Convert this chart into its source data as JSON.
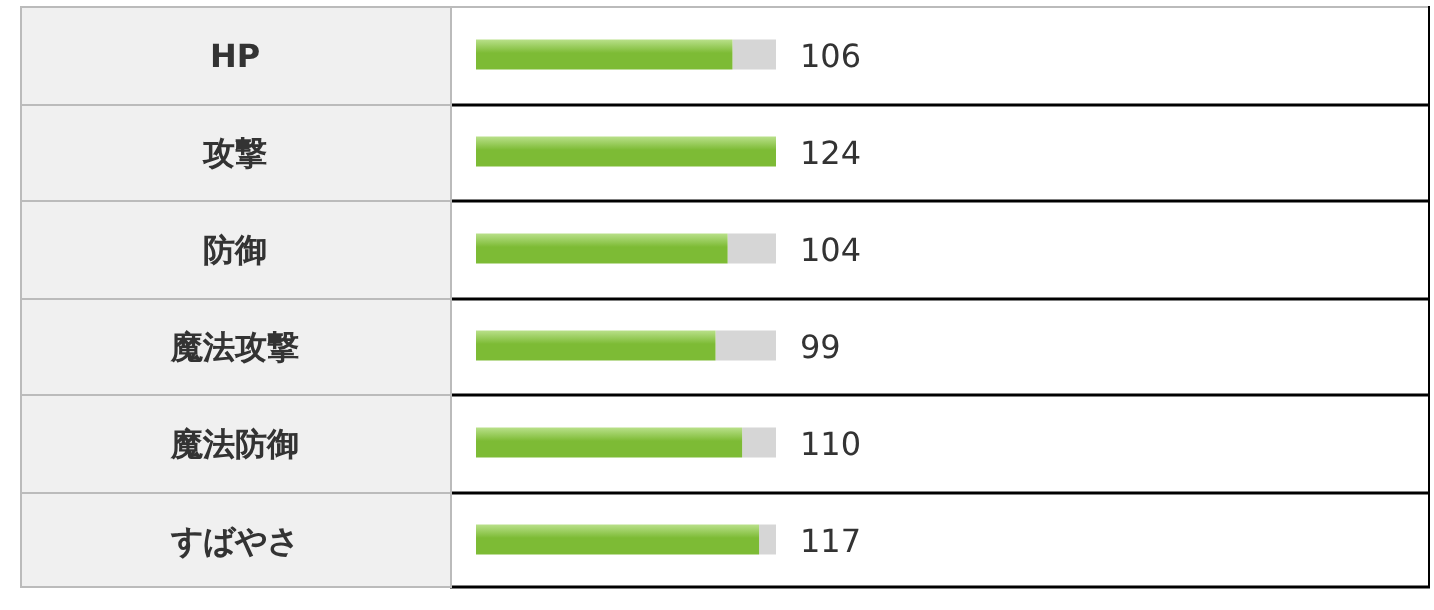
{
  "chart_data": {
    "type": "bar",
    "orientation": "horizontal",
    "color": "#7dbb35",
    "data_labels": true,
    "categories": [
      "HP",
      "攻撃",
      "防御",
      "魔法攻撃",
      "魔法防御",
      "すばやさ"
    ],
    "values": [
      106,
      124,
      104,
      99,
      110,
      117
    ]
  }
}
